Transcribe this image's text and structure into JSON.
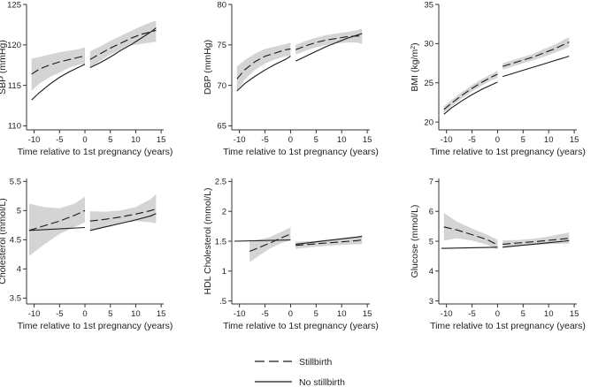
{
  "figure": {
    "legend": {
      "placement": "bottom-center",
      "entries": [
        {
          "label": "Stillbirth",
          "style": "dashed"
        },
        {
          "label": "No stillbirth",
          "style": "solid"
        }
      ]
    },
    "colors": {
      "band": "#d4d4d4",
      "line": "#1a1a1a",
      "axis": "#333333",
      "background": "#ffffff"
    }
  },
  "chart_data": [
    {
      "type": "line",
      "title": "",
      "xlabel": "Time relative to 1st pregnancy (years)",
      "ylabel": "SBP (mmHg)",
      "ylabel_sup": "",
      "ylabel_after": "",
      "xlim": [
        -11.5,
        15.5
      ],
      "ylim": [
        109.5,
        125
      ],
      "xticks": [
        -10,
        -5,
        0,
        5,
        10,
        15
      ],
      "xtick_labels": [
        "-10",
        "-5",
        "0",
        "5",
        "10",
        "15"
      ],
      "yticks": [
        110,
        115,
        120,
        125
      ],
      "ytick_labels": [
        "110",
        "115",
        "120",
        "125"
      ],
      "series": [
        {
          "name": "Stillbirth",
          "style": "dashed",
          "segments": [
            {
              "x": [
                -10.5,
                -9,
                -7,
                -5,
                -3,
                -1,
                0
              ],
              "y": [
                116.4,
                117.0,
                117.5,
                117.9,
                118.2,
                118.5,
                118.6
              ],
              "lower": [
                114.3,
                115.2,
                116.0,
                116.6,
                117.2,
                117.6,
                117.6
              ],
              "upper": [
                118.3,
                118.5,
                118.8,
                119.1,
                119.3,
                119.5,
                119.7
              ]
            },
            {
              "x": [
                1,
                3,
                5,
                7,
                9,
                11,
                13,
                14
              ],
              "y": [
                118.2,
                118.9,
                119.6,
                120.2,
                120.8,
                121.3,
                121.6,
                121.8
              ],
              "lower": [
                117.2,
                118.0,
                118.8,
                119.4,
                119.9,
                120.1,
                120.3,
                120.4
              ],
              "upper": [
                119.2,
                119.8,
                120.5,
                121.1,
                121.7,
                122.3,
                122.8,
                123.0
              ]
            }
          ]
        },
        {
          "name": "No stillbirth",
          "style": "solid",
          "segments": [
            {
              "x": [
                -10.5,
                -9,
                -7,
                -5,
                -3,
                -1,
                0
              ],
              "y": [
                113.2,
                114.1,
                115.1,
                116.0,
                116.7,
                117.3,
                117.6
              ]
            },
            {
              "x": [
                1,
                3,
                5,
                7,
                9,
                11,
                13,
                14
              ],
              "y": [
                117.2,
                117.8,
                118.5,
                119.3,
                120.0,
                120.8,
                121.6,
                122.1
              ]
            }
          ]
        }
      ]
    },
    {
      "type": "line",
      "title": "",
      "xlabel": "Time relative to 1st pregnancy (years)",
      "ylabel": "DBP (mmHg)",
      "ylabel_sup": "",
      "ylabel_after": "",
      "xlim": [
        -11.5,
        15.5
      ],
      "ylim": [
        64.5,
        80
      ],
      "xticks": [
        -10,
        -5,
        0,
        5,
        10,
        15
      ],
      "xtick_labels": [
        "-10",
        "-5",
        "0",
        "5",
        "10",
        "15"
      ],
      "yticks": [
        65,
        70,
        75,
        80
      ],
      "ytick_labels": [
        "65",
        "70",
        "75",
        "80"
      ],
      "series": [
        {
          "name": "Stillbirth",
          "style": "dashed",
          "segments": [
            {
              "x": [
                -10.5,
                -9,
                -7,
                -5,
                -3,
                -1,
                0
              ],
              "y": [
                70.8,
                71.9,
                72.9,
                73.6,
                74.0,
                74.4,
                74.5
              ],
              "lower": [
                69.3,
                70.7,
                71.9,
                72.7,
                73.2,
                73.6,
                73.6
              ],
              "upper": [
                72.3,
                73.1,
                73.9,
                74.5,
                74.8,
                75.1,
                75.3
              ]
            },
            {
              "x": [
                1,
                3,
                5,
                7,
                9,
                11,
                13,
                14
              ],
              "y": [
                74.4,
                74.9,
                75.3,
                75.6,
                75.8,
                76.0,
                76.1,
                76.0
              ],
              "lower": [
                73.8,
                74.3,
                74.7,
                75.0,
                75.2,
                75.3,
                75.3,
                75.1
              ],
              "upper": [
                75.0,
                75.5,
                75.9,
                76.2,
                76.4,
                76.6,
                76.8,
                77.0
              ]
            }
          ]
        },
        {
          "name": "No stillbirth",
          "style": "solid",
          "segments": [
            {
              "x": [
                -10.5,
                -9,
                -7,
                -5,
                -3,
                -1,
                0
              ],
              "y": [
                69.3,
                70.2,
                71.1,
                71.9,
                72.6,
                73.2,
                73.6
              ]
            },
            {
              "x": [
                1,
                3,
                5,
                7,
                9,
                11,
                13,
                14
              ],
              "y": [
                73.0,
                73.6,
                74.2,
                74.8,
                75.3,
                75.8,
                76.2,
                76.4
              ]
            }
          ]
        }
      ]
    },
    {
      "type": "line",
      "title": "",
      "xlabel": "Time relative to 1st pregnancy (years)",
      "ylabel": "BMI (kg/m",
      "ylabel_sup": "2",
      "ylabel_after": ")",
      "xlim": [
        -11.5,
        15.5
      ],
      "ylim": [
        19,
        35
      ],
      "xticks": [
        -10,
        -5,
        0,
        5,
        10,
        15
      ],
      "xtick_labels": [
        "-10",
        "-5",
        "0",
        "5",
        "10",
        "15"
      ],
      "yticks": [
        20,
        25,
        30,
        35
      ],
      "ytick_labels": [
        "20",
        "25",
        "30",
        "35"
      ],
      "series": [
        {
          "name": "Stillbirth",
          "style": "dashed",
          "segments": [
            {
              "x": [
                -10.5,
                -9,
                -7,
                -5,
                -3,
                -1,
                0
              ],
              "y": [
                21.6,
                22.4,
                23.4,
                24.3,
                25.1,
                25.8,
                26.1
              ],
              "lower": [
                21.2,
                22.0,
                23.0,
                23.9,
                24.7,
                25.4,
                25.6
              ],
              "upper": [
                22.0,
                22.8,
                23.8,
                24.7,
                25.5,
                26.2,
                26.6
              ]
            },
            {
              "x": [
                1,
                3,
                5,
                7,
                9,
                11,
                13,
                14
              ],
              "y": [
                27.1,
                27.5,
                27.9,
                28.3,
                28.8,
                29.3,
                29.9,
                30.2
              ],
              "lower": [
                26.7,
                27.1,
                27.5,
                27.9,
                28.3,
                28.8,
                29.3,
                29.6
              ],
              "upper": [
                27.5,
                27.9,
                28.3,
                28.7,
                29.3,
                29.8,
                30.5,
                30.8
              ]
            }
          ]
        },
        {
          "name": "No stillbirth",
          "style": "solid",
          "segments": [
            {
              "x": [
                -10.5,
                -9,
                -7,
                -5,
                -3,
                -1,
                0
              ],
              "y": [
                21.0,
                21.8,
                22.7,
                23.5,
                24.2,
                24.8,
                25.1
              ]
            },
            {
              "x": [
                1,
                3,
                5,
                7,
                9,
                11,
                13,
                14
              ],
              "y": [
                25.8,
                26.2,
                26.6,
                27.0,
                27.4,
                27.8,
                28.2,
                28.4
              ]
            }
          ]
        }
      ]
    },
    {
      "type": "line",
      "title": "",
      "xlabel": "Time relative to 1st pregnancy (years)",
      "ylabel": "Cholesterol (mmol/L)",
      "ylabel_sup": "",
      "ylabel_after": "",
      "xlim": [
        -11.5,
        15.5
      ],
      "ylim": [
        3.4,
        5.55
      ],
      "xticks": [
        -10,
        -5,
        0,
        5,
        10,
        15
      ],
      "xtick_labels": [
        "-10",
        "-5",
        "0",
        "5",
        "10",
        "15"
      ],
      "yticks": [
        3.5,
        4,
        4.5,
        5,
        5.5
      ],
      "ytick_labels": [
        "3.5",
        "4",
        "4.5",
        "5",
        "5.5"
      ],
      "series": [
        {
          "name": "Stillbirth",
          "style": "dashed",
          "segments": [
            {
              "x": [
                -11,
                -8,
                -5,
                -2,
                0
              ],
              "y": [
                4.66,
                4.74,
                4.82,
                4.92,
                5.0
              ],
              "lower": [
                4.22,
                4.42,
                4.6,
                4.72,
                4.8
              ],
              "upper": [
                5.12,
                5.06,
                5.04,
                5.12,
                5.24
              ]
            },
            {
              "x": [
                1,
                4,
                7,
                10,
                13,
                14
              ],
              "y": [
                4.82,
                4.85,
                4.89,
                4.94,
                5.0,
                5.03
              ],
              "lower": [
                4.65,
                4.72,
                4.78,
                4.82,
                4.8,
                4.78
              ],
              "upper": [
                4.99,
                4.98,
                5.0,
                5.06,
                5.2,
                5.28
              ]
            }
          ]
        },
        {
          "name": "No stillbirth",
          "style": "solid",
          "segments": [
            {
              "x": [
                -11,
                0
              ],
              "y": [
                4.66,
                4.71
              ]
            },
            {
              "x": [
                1,
                4,
                7,
                10,
                13,
                14
              ],
              "y": [
                4.66,
                4.72,
                4.78,
                4.84,
                4.91,
                4.95
              ]
            }
          ]
        }
      ]
    },
    {
      "type": "line",
      "title": "",
      "xlabel": "Time relative to 1st pregnancy (years)",
      "ylabel": "HDL Cholesterol (mmol/L)",
      "ylabel_sup": "",
      "ylabel_after": "",
      "xlim": [
        -11.5,
        15.5
      ],
      "ylim": [
        0.45,
        2.55
      ],
      "xticks": [
        -10,
        -5,
        0,
        5,
        10,
        15
      ],
      "xtick_labels": [
        "-10",
        "-5",
        "0",
        "5",
        "10",
        "15"
      ],
      "yticks": [
        0.5,
        1,
        1.5,
        2,
        2.5
      ],
      "ytick_labels": [
        ".5",
        "1",
        "1.5",
        "2",
        "2.5"
      ],
      "series": [
        {
          "name": "Stillbirth",
          "style": "dashed",
          "segments": [
            {
              "x": [
                -8,
                -6,
                -4,
                -2,
                0
              ],
              "y": [
                1.33,
                1.4,
                1.47,
                1.55,
                1.62
              ],
              "lower": [
                1.15,
                1.27,
                1.38,
                1.46,
                1.52
              ],
              "upper": [
                1.5,
                1.53,
                1.57,
                1.65,
                1.73
              ]
            },
            {
              "x": [
                1,
                4,
                7,
                10,
                13,
                14
              ],
              "y": [
                1.43,
                1.45,
                1.47,
                1.49,
                1.51,
                1.52
              ],
              "lower": [
                1.37,
                1.4,
                1.42,
                1.44,
                1.45,
                1.45
              ],
              "upper": [
                1.49,
                1.5,
                1.52,
                1.55,
                1.58,
                1.6
              ]
            }
          ]
        },
        {
          "name": "No stillbirth",
          "style": "solid",
          "segments": [
            {
              "x": [
                -11,
                0
              ],
              "y": [
                1.5,
                1.52
              ]
            },
            {
              "x": [
                1,
                4,
                7,
                10,
                13,
                14
              ],
              "y": [
                1.45,
                1.48,
                1.51,
                1.54,
                1.57,
                1.58
              ]
            }
          ]
        }
      ]
    },
    {
      "type": "line",
      "title": "",
      "xlabel": "Time relative to 1st pregnancy (years)",
      "ylabel": "Glucose (mmol/L)",
      "ylabel_sup": "",
      "ylabel_after": "",
      "xlim": [
        -11.5,
        15.5
      ],
      "ylim": [
        2.9,
        7.1
      ],
      "xticks": [
        -10,
        -5,
        0,
        5,
        10,
        15
      ],
      "xtick_labels": [
        "-10",
        "-5",
        "0",
        "5",
        "10",
        "15"
      ],
      "yticks": [
        3,
        4,
        5,
        6,
        7
      ],
      "ytick_labels": [
        "3",
        "4",
        "5",
        "6",
        "7"
      ],
      "series": [
        {
          "name": "Stillbirth",
          "style": "dashed",
          "segments": [
            {
              "x": [
                -10.5,
                -8,
                -5,
                -2,
                0
              ],
              "y": [
                5.48,
                5.38,
                5.22,
                5.05,
                4.88
              ],
              "lower": [
                5.02,
                5.1,
                5.02,
                4.88,
                4.72
              ],
              "upper": [
                5.95,
                5.66,
                5.42,
                5.22,
                5.05
              ]
            },
            {
              "x": [
                1,
                4,
                7,
                10,
                13,
                14
              ],
              "y": [
                4.9,
                4.94,
                4.98,
                5.03,
                5.08,
                5.1
              ],
              "lower": [
                4.78,
                4.84,
                4.88,
                4.9,
                4.92,
                4.92
              ],
              "upper": [
                5.02,
                5.04,
                5.08,
                5.16,
                5.26,
                5.3
              ]
            }
          ]
        },
        {
          "name": "No stillbirth",
          "style": "solid",
          "segments": [
            {
              "x": [
                -11,
                0
              ],
              "y": [
                4.76,
                4.8
              ]
            },
            {
              "x": [
                1,
                4,
                7,
                10,
                13,
                14
              ],
              "y": [
                4.8,
                4.85,
                4.9,
                4.95,
                5.0,
                5.02
              ]
            }
          ]
        }
      ]
    }
  ]
}
